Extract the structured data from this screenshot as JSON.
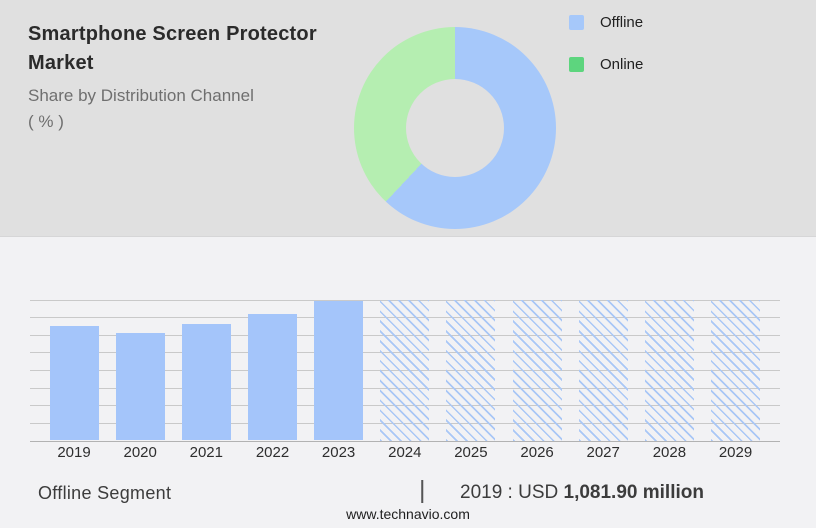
{
  "header": {
    "title_line1": "Smartphone Screen Protector",
    "title_line2": "Market",
    "subtitle_line1": "Share by Distribution Channel",
    "subtitle_line2": "( % )"
  },
  "legend": {
    "items": [
      {
        "label": "Offline",
        "swatch_color": "#a6c8fa"
      },
      {
        "label": "Online",
        "swatch_color": "#5dd57e"
      }
    ]
  },
  "footer": {
    "segment_label": "Offline Segment",
    "separator": "|",
    "value_prefix": "2019 : USD ",
    "value_bold": "1,081.90 million",
    "website": "www.technavio.com"
  },
  "colors": {
    "top_bg": "#e0e0e0",
    "bottom_bg": "#f2f2f4",
    "bar_blue": "#a4c5fa",
    "hatch": "#a9c7f6",
    "grid": "#c9c9c9",
    "grid_base": "#b2b2b2"
  },
  "chart_data": [
    {
      "type": "pie",
      "subtype": "donut",
      "title": "Share by Distribution Channel (%)",
      "labels": [
        "Offline",
        "Online"
      ],
      "values": [
        62,
        38
      ],
      "values_note": "estimated from arc angles; no numeric labels shown",
      "colors": [
        "#a6c8fa",
        "#b5eeb1"
      ],
      "start_angle_deg": 0,
      "direction": "clockwise",
      "legend_position": "right"
    },
    {
      "type": "bar",
      "title": "Offline Segment",
      "categories": [
        "2019",
        "2020",
        "2021",
        "2022",
        "2023",
        "2024",
        "2025",
        "2026",
        "2027",
        "2028",
        "2029"
      ],
      "series": [
        {
          "name": "Offline segment market size (USD million)",
          "values": [
            1081.9,
            1013,
            1095,
            1192,
            1319,
            null,
            null,
            null,
            null,
            null,
            null
          ]
        }
      ],
      "bar_styles": [
        "solid",
        "solid",
        "solid",
        "solid",
        "solid",
        "hatched",
        "hatched",
        "hatched",
        "hatched",
        "hatched",
        "hatched"
      ],
      "values_note": "only 2019 is labeled (USD 1,081.90 million); 2020-2023 estimated from bar heights; 2024-2029 are hatched forecast placeholders drawn full height",
      "annotation": "2019 : USD 1,081.90 million",
      "xlabel": "",
      "ylabel": "USD million",
      "ylim": [
        0,
        1330
      ],
      "grid": "horizontal",
      "legend_position": "none"
    }
  ]
}
